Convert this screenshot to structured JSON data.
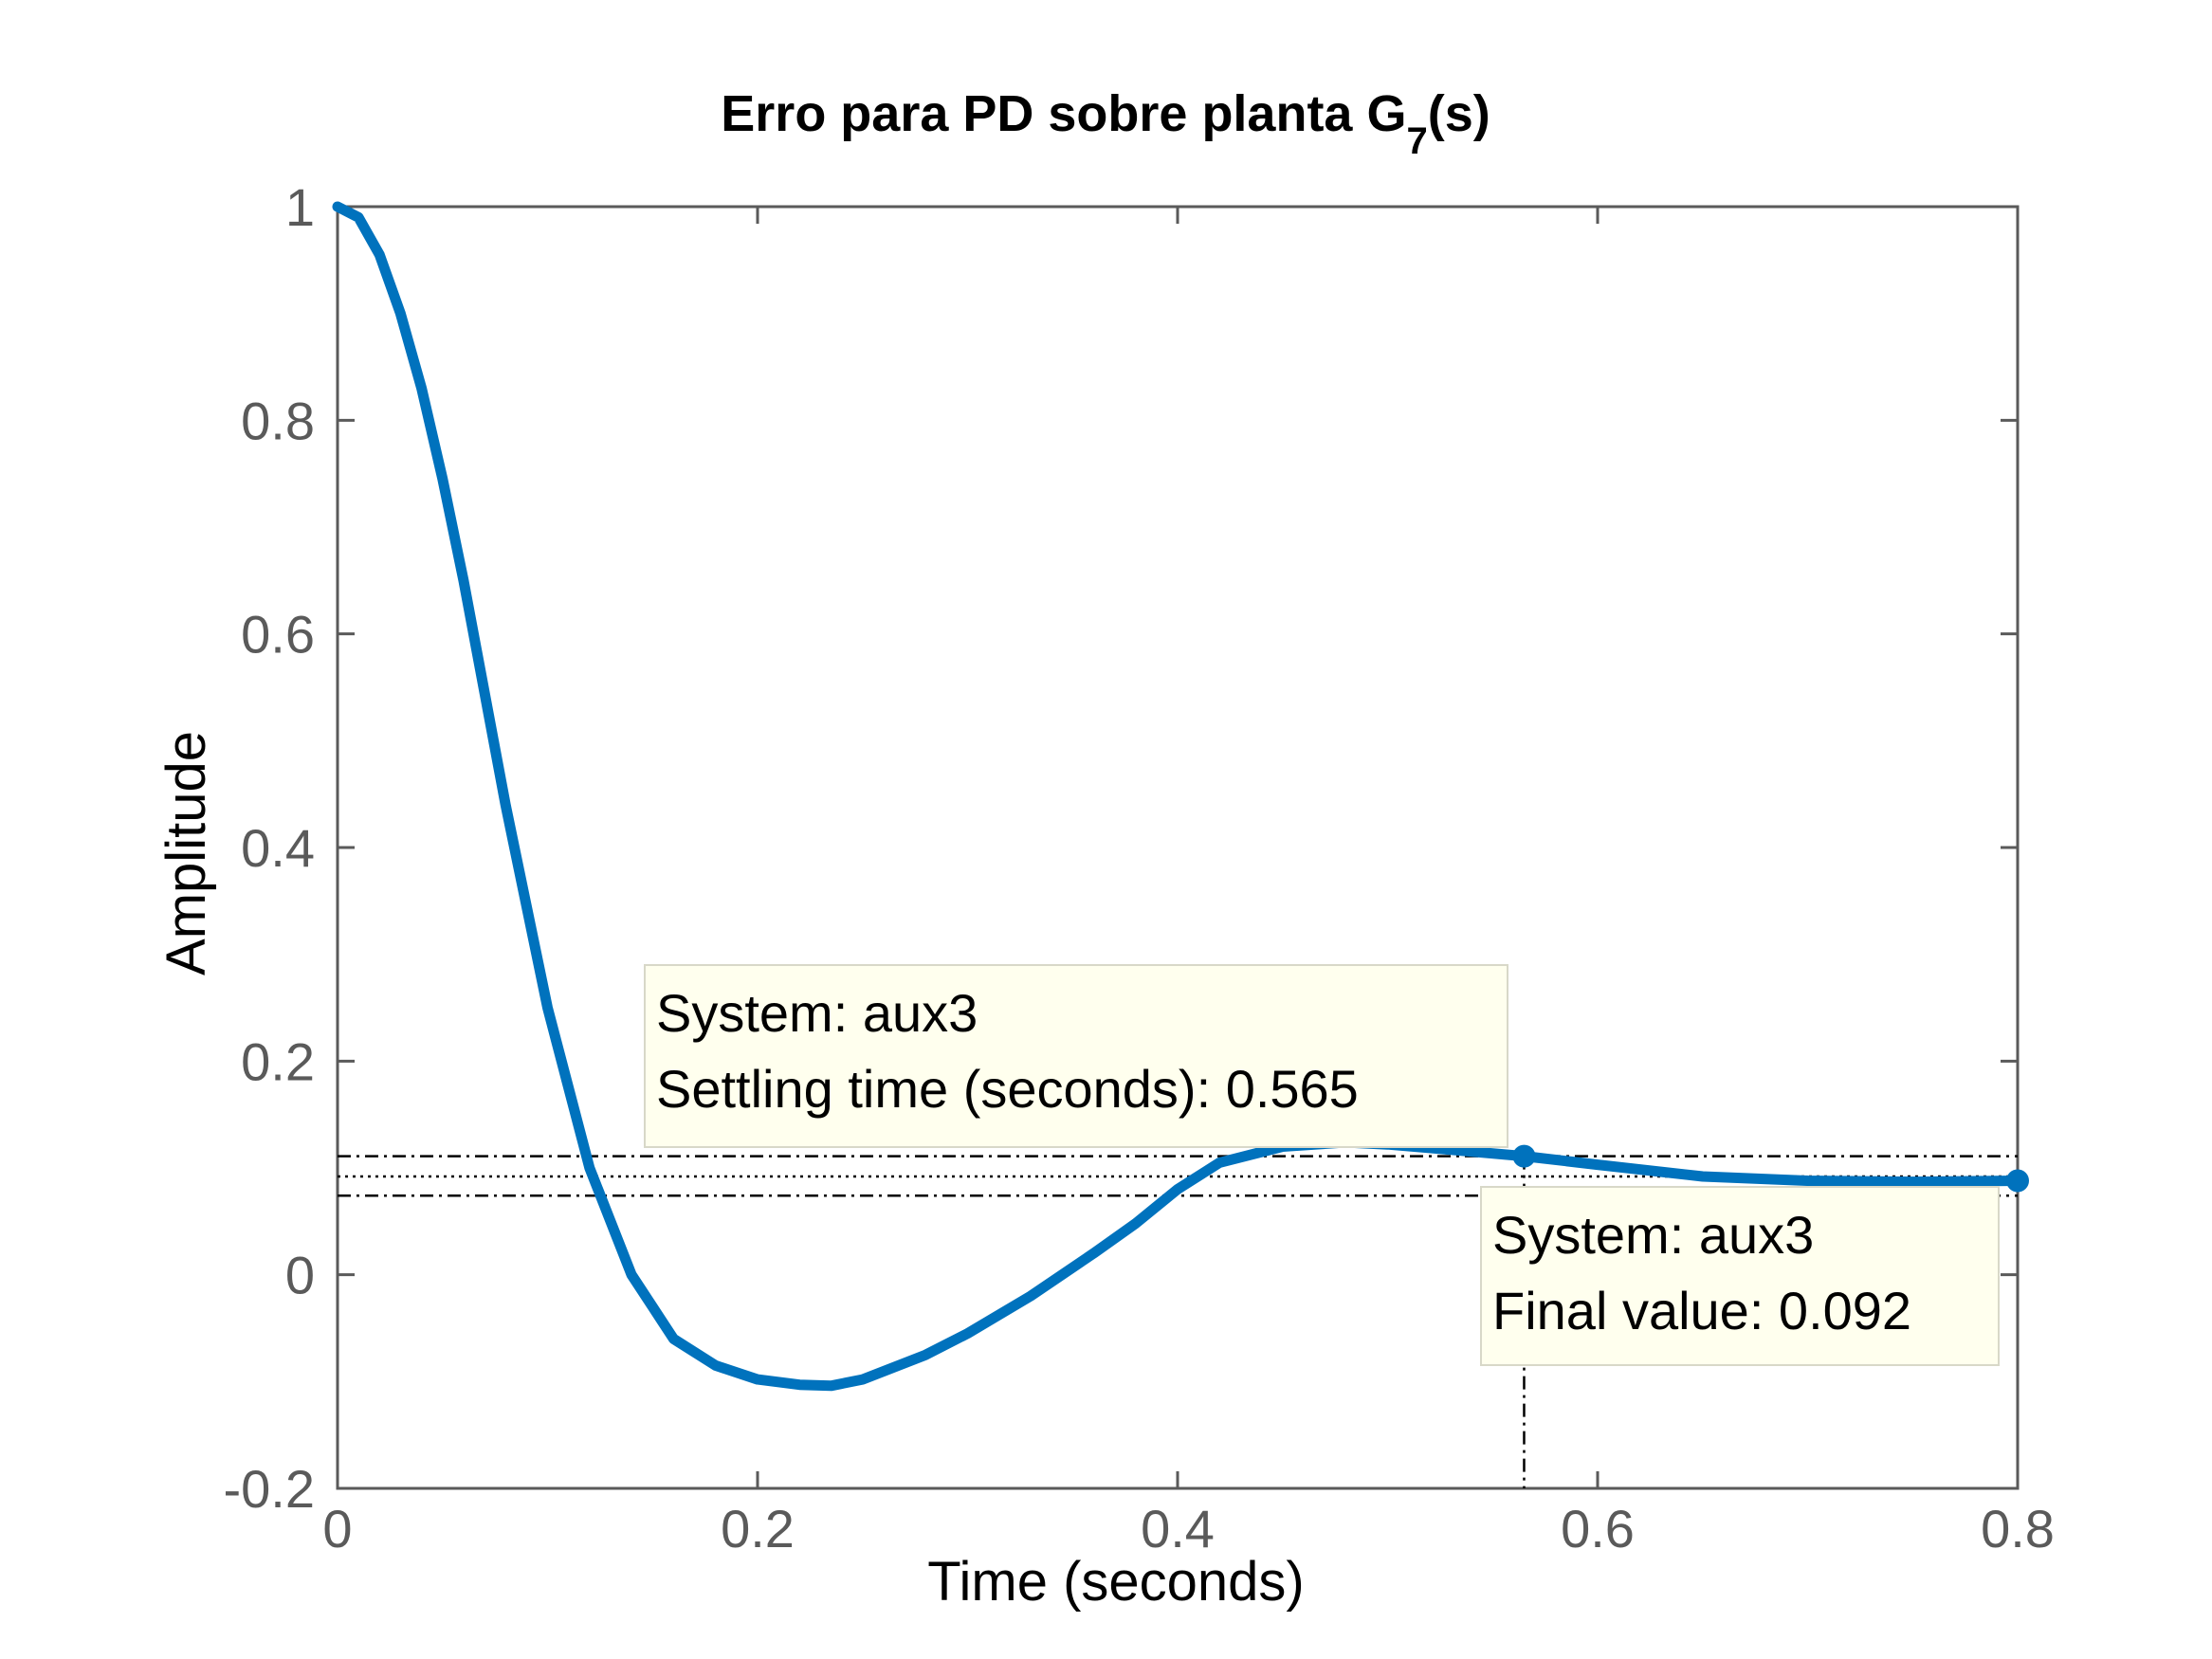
{
  "chart_data": {
    "type": "line",
    "title": "Erro para PD sobre planta G",
    "title_subscript": "7",
    "title_suffix": "(s)",
    "xlabel": "Time (seconds)",
    "ylabel": "Amplitude",
    "xlim": [
      0,
      0.8
    ],
    "ylim": [
      -0.2,
      1
    ],
    "xticks": [
      0,
      0.2,
      0.4,
      0.6,
      0.8
    ],
    "xtick_labels": [
      "0",
      "0.2",
      "0.4",
      "0.6",
      "0.8"
    ],
    "yticks": [
      -0.2,
      0,
      0.2,
      0.4,
      0.6,
      0.8,
      1
    ],
    "ytick_labels": [
      "-0.2",
      "0",
      "0.2",
      "0.4",
      "0.6",
      "0.8",
      "1"
    ],
    "grid": false,
    "colors": {
      "line": "#0072BD",
      "tip_bg": "#FFFFEE",
      "tip_border": "#D8D8C8",
      "axes": "#5a5a5a"
    },
    "series": [
      {
        "x": [
          0,
          0.01,
          0.02,
          0.03,
          0.04,
          0.05,
          0.06,
          0.08,
          0.1,
          0.12,
          0.14,
          0.15,
          0.16,
          0.18,
          0.2,
          0.22,
          0.235,
          0.25,
          0.28,
          0.3,
          0.33,
          0.36,
          0.38,
          0.4,
          0.42,
          0.45,
          0.48,
          0.5,
          0.53,
          0.565,
          0.6,
          0.65,
          0.7,
          0.75,
          0.8
        ],
        "y": [
          1.0,
          0.99,
          0.955,
          0.9,
          0.83,
          0.745,
          0.65,
          0.44,
          0.25,
          0.1,
          0.0,
          -0.03,
          -0.06,
          -0.085,
          -0.098,
          -0.103,
          -0.104,
          -0.098,
          -0.075,
          -0.055,
          -0.02,
          0.02,
          0.048,
          0.08,
          0.105,
          0.12,
          0.124,
          0.122,
          0.117,
          0.111,
          0.103,
          0.092,
          0.088,
          0.087,
          0.088
        ]
      }
    ],
    "settling_band": {
      "upper": 0.111,
      "center": 0.092,
      "lower": 0.074
    },
    "annotations": [
      {
        "point": {
          "x": 0.565,
          "y": 0.111
        },
        "lines": [
          "System: aux3",
          "Settling time (seconds): 0.565"
        ]
      },
      {
        "point": {
          "x": 0.8,
          "y": 0.088
        },
        "lines": [
          "System: aux3",
          "Final value: 0.092"
        ]
      }
    ]
  }
}
